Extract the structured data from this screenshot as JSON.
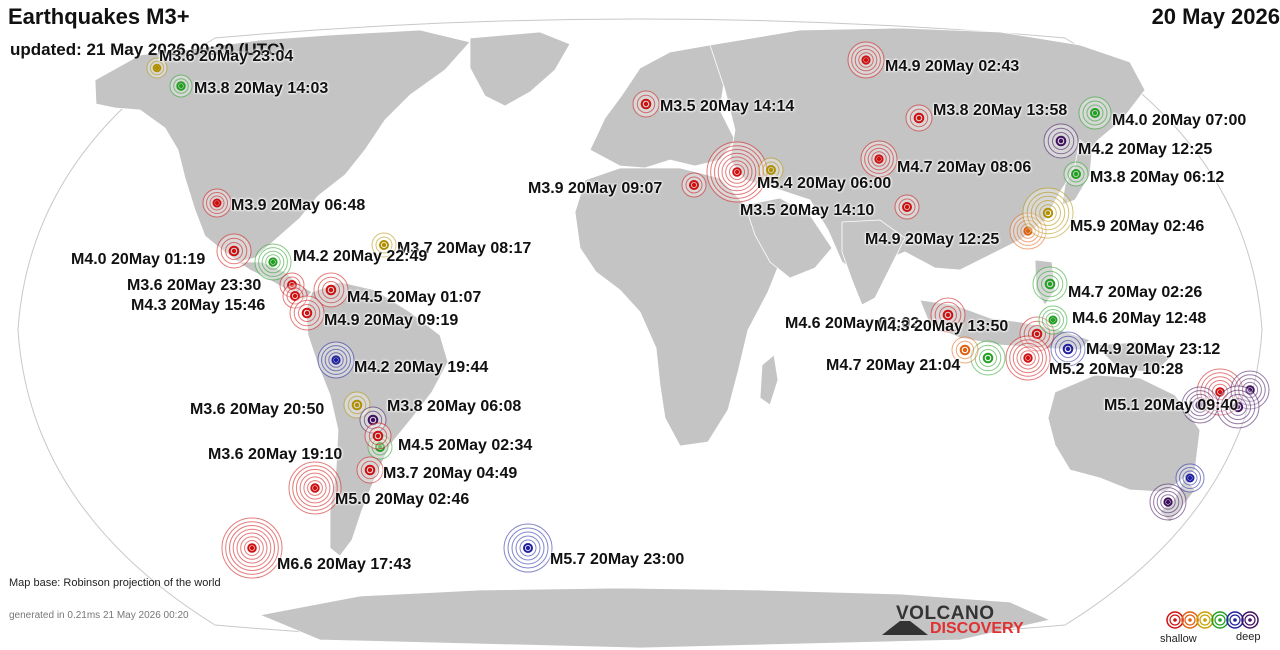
{
  "header": {
    "title": "Earthquakes M3+",
    "updated": "updated: 21 May 2026 00:20 (UTC)",
    "date": "20 May 2026"
  },
  "footer": {
    "map_base": "Map base: Robinson projection of the world",
    "generated": "generated in 0.21ms 21 May 2026 00:20"
  },
  "logo": {
    "line1": "VOLCANO",
    "line2": "DISCOVERY"
  },
  "legend": {
    "shallow": "shallow",
    "deep": "deep",
    "colors": [
      "#d01010",
      "#e06010",
      "#c8a000",
      "#22a022",
      "#2020a0",
      "#401060"
    ]
  },
  "colors": {
    "ocean": "#ffffff",
    "land": "#c4c4c4",
    "border": "#ffffff"
  },
  "quakes": [
    {
      "label": "M3.6 20May 23:04",
      "depth": "yellow"
    },
    {
      "label": "M3.8 20May 14:03",
      "depth": "green"
    },
    {
      "label": "M4.9 20May 02:43",
      "depth": "red"
    },
    {
      "label": "M3.5 20May 14:14",
      "depth": "red"
    },
    {
      "label": "M3.8 20May 13:58",
      "depth": "red"
    },
    {
      "label": "M4.0 20May 07:00",
      "depth": "green"
    },
    {
      "label": "M4.2 20May 12:25",
      "depth": "purple"
    },
    {
      "label": "M4.7 20May 08:06",
      "depth": "red"
    },
    {
      "label": "M3.8 20May 06:12",
      "depth": "green"
    },
    {
      "label": "M3.9 20May 09:07",
      "depth": "red"
    },
    {
      "label": "M5.4 20May 06:00",
      "depth": "red"
    },
    {
      "label": "M3.5 20May 14:10",
      "depth": "red"
    },
    {
      "label": "M4.9 20May 12:25",
      "depth": "orange"
    },
    {
      "label": "M5.9 20May 02:46",
      "depth": "yellow"
    },
    {
      "label": "M3.9 20May 06:48",
      "depth": "red"
    },
    {
      "label": "M3.7 20May 08:17",
      "depth": "yellow"
    },
    {
      "label": "M4.0 20May 01:19",
      "depth": "red"
    },
    {
      "label": "M4.2 20May 22:49",
      "depth": "green"
    },
    {
      "label": "M3.6 20May 23:30",
      "depth": "red"
    },
    {
      "label": "M4.5 20May 01:07",
      "depth": "red"
    },
    {
      "label": "M4.3 20May 15:46",
      "depth": "red"
    },
    {
      "label": "M4.9 20May 09:19",
      "depth": "red"
    },
    {
      "label": "M4.7 20May 02:26",
      "depth": "green"
    },
    {
      "label": "M4.6 20May 02:02",
      "depth": "red"
    },
    {
      "label": "M4.3 20May 13:50",
      "depth": "red"
    },
    {
      "label": "M4.6 20May 12:48",
      "depth": "green"
    },
    {
      "label": "M4.7 20May 21:04",
      "depth": "green"
    },
    {
      "label": "M4.9 20May 23:12",
      "depth": "blue"
    },
    {
      "label": "M5.2 20May 10:28",
      "depth": "red"
    },
    {
      "label": "M5.1 20May 09:40",
      "depth": "purple"
    },
    {
      "label": "M4.2 20May 19:44",
      "depth": "blue"
    },
    {
      "label": "M3.6 20May 20:50",
      "depth": "yellow"
    },
    {
      "label": "M3.8 20May 06:08",
      "depth": "purple"
    },
    {
      "label": "M3.6 20May 19:10",
      "depth": "green"
    },
    {
      "label": "M4.5 20May 02:34",
      "depth": "red"
    },
    {
      "label": "M3.7 20May 04:49",
      "depth": "red"
    },
    {
      "label": "M5.0 20May 02:46",
      "depth": "red"
    },
    {
      "label": "M6.6 20May 17:43",
      "depth": "red"
    },
    {
      "label": "M5.7 20May 23:00",
      "depth": "blue"
    },
    {
      "label": "",
      "depth": "red"
    },
    {
      "label": "",
      "depth": "blue"
    },
    {
      "label": "",
      "depth": "purple"
    }
  ]
}
